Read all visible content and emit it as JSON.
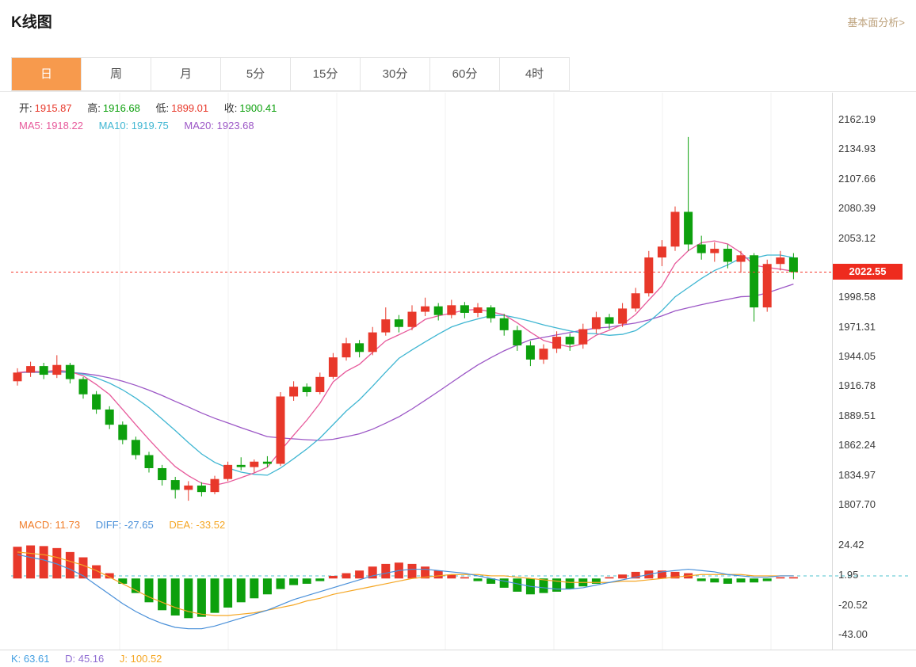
{
  "header": {
    "title": "K线图",
    "link": "基本面分析>"
  },
  "tabs": {
    "items": [
      {
        "label": "日",
        "active": true
      },
      {
        "label": "周",
        "active": false
      },
      {
        "label": "月",
        "active": false
      },
      {
        "label": "5分",
        "active": false
      },
      {
        "label": "15分",
        "active": false
      },
      {
        "label": "30分",
        "active": false
      },
      {
        "label": "60分",
        "active": false
      },
      {
        "label": "4时",
        "active": false
      }
    ]
  },
  "info": {
    "open_label": "开:",
    "open": "1915.87",
    "high_label": "高:",
    "high": "1916.68",
    "low_label": "低:",
    "low": "1899.01",
    "close_label": "收:",
    "close": "1900.41",
    "ma5_label": "MA5:",
    "ma5": "1918.22",
    "ma10_label": "MA10:",
    "ma10": "1919.75",
    "ma20_label": "MA20:",
    "ma20": "1923.68"
  },
  "macd_info": {
    "macd_label": "MACD:",
    "macd": "11.73",
    "diff_label": "DIFF:",
    "diff": "-27.65",
    "dea_label": "DEA:",
    "dea": "-33.52"
  },
  "kdj_info": {
    "k_label": "K:",
    "k": "63.61",
    "d_label": "D:",
    "d": "45.16",
    "j_label": "J:",
    "j": "100.52"
  },
  "price_badge": "2022.55",
  "colors": {
    "up": "#e8382a",
    "down": "#0da00d",
    "ma5": "#e75a9b",
    "ma10": "#3fb6d2",
    "ma20": "#9c57c6",
    "diff": "#4a90d9",
    "dea": "#f5a623",
    "badge": "#ee2b1e",
    "dashed_teal": "#4fc3cf",
    "current_price_line": "#f5382c",
    "tab_active": "#f79a4d"
  },
  "chart_data": {
    "type": "candlestick",
    "interval": "日",
    "price_axis_ticks": [
      2162.19,
      2134.93,
      2107.66,
      2080.39,
      2053.12,
      1998.58,
      1971.31,
      1944.05,
      1916.78,
      1889.51,
      1862.24,
      1834.97,
      1807.7
    ],
    "price_range": [
      1807.7,
      2162.19
    ],
    "current_price": 2022.55,
    "macd_axis_ticks": [
      24.42,
      1.95,
      -20.52,
      -43.0
    ],
    "macd_range": [
      -43.0,
      24.42
    ],
    "legend": {
      "ma5": 1918.22,
      "ma10": 1919.75,
      "ma20": 1923.68,
      "macd": 11.73,
      "diff": -27.65,
      "dea": -33.52,
      "k": 63.61,
      "d": 45.16,
      "j": 100.52
    },
    "candles": [
      [
        1922,
        1934,
        1918,
        1930
      ],
      [
        1930,
        1940,
        1926,
        1936
      ],
      [
        1936,
        1939,
        1924,
        1928
      ],
      [
        1928,
        1946,
        1925,
        1937
      ],
      [
        1937,
        1939,
        1920,
        1924
      ],
      [
        1924,
        1926,
        1906,
        1910
      ],
      [
        1910,
        1913,
        1892,
        1896
      ],
      [
        1896,
        1899,
        1878,
        1882
      ],
      [
        1882,
        1885,
        1864,
        1868
      ],
      [
        1868,
        1871,
        1850,
        1854
      ],
      [
        1854,
        1857,
        1838,
        1842
      ],
      [
        1842,
        1845,
        1826,
        1831
      ],
      [
        1831,
        1834,
        1814,
        1822
      ],
      [
        1822,
        1830,
        1812,
        1826
      ],
      [
        1826,
        1829,
        1816,
        1820
      ],
      [
        1820,
        1835,
        1818,
        1832
      ],
      [
        1832,
        1848,
        1830,
        1845
      ],
      [
        1845,
        1852,
        1840,
        1843
      ],
      [
        1843,
        1850,
        1838,
        1848
      ],
      [
        1848,
        1853,
        1843,
        1846
      ],
      [
        1846,
        1912,
        1844,
        1908
      ],
      [
        1908,
        1922,
        1904,
        1917
      ],
      [
        1917,
        1920,
        1908,
        1912
      ],
      [
        1912,
        1930,
        1910,
        1926
      ],
      [
        1926,
        1948,
        1924,
        1944
      ],
      [
        1944,
        1962,
        1941,
        1957
      ],
      [
        1957,
        1960,
        1944,
        1949
      ],
      [
        1949,
        1972,
        1946,
        1967
      ],
      [
        1967,
        1990,
        1964,
        1979
      ],
      [
        1979,
        1983,
        1967,
        1972
      ],
      [
        1972,
        1992,
        1969,
        1986
      ],
      [
        1986,
        1999,
        1982,
        1991
      ],
      [
        1991,
        1994,
        1978,
        1983
      ],
      [
        1983,
        1997,
        1980,
        1992
      ],
      [
        1992,
        1995,
        1980,
        1985
      ],
      [
        1985,
        1994,
        1981,
        1990
      ],
      [
        1990,
        1992,
        1976,
        1980
      ],
      [
        1980,
        1984,
        1964,
        1969
      ],
      [
        1969,
        1973,
        1950,
        1955
      ],
      [
        1955,
        1959,
        1936,
        1942
      ],
      [
        1942,
        1956,
        1938,
        1952
      ],
      [
        1952,
        1968,
        1948,
        1963
      ],
      [
        1963,
        1966,
        1950,
        1956
      ],
      [
        1956,
        1975,
        1952,
        1970
      ],
      [
        1970,
        1986,
        1966,
        1981
      ],
      [
        1981,
        1984,
        1970,
        1975
      ],
      [
        1975,
        1994,
        1972,
        1989
      ],
      [
        1989,
        2008,
        1986,
        2003
      ],
      [
        2003,
        2042,
        2000,
        2036
      ],
      [
        2036,
        2052,
        2028,
        2046
      ],
      [
        2046,
        2083,
        2042,
        2078
      ],
      [
        2078,
        2147,
        2042,
        2048
      ],
      [
        2048,
        2056,
        2034,
        2040
      ],
      [
        2040,
        2050,
        2032,
        2044
      ],
      [
        2044,
        2048,
        2026,
        2032
      ],
      [
        2032,
        2042,
        2022,
        2038
      ],
      [
        2038,
        2040,
        1977,
        1990
      ],
      [
        1990,
        2034,
        1986,
        2030
      ],
      [
        2030,
        2042,
        2024,
        2036
      ],
      [
        2036,
        2040,
        2016,
        2022.55
      ]
    ],
    "macd": {
      "hist": [
        24,
        25,
        24.5,
        23,
        20,
        16,
        10,
        4,
        -4,
        -11,
        -18,
        -24,
        -28,
        -30,
        -29,
        -26,
        -22,
        -18,
        -15,
        -12,
        -8,
        -5,
        -4,
        -2,
        2,
        4,
        6,
        9,
        11,
        12,
        11,
        9,
        6,
        3,
        1,
        -2,
        -4,
        -7,
        -10,
        -12,
        -11,
        -10,
        -8,
        -6,
        -4,
        1,
        3,
        5,
        6,
        6,
        5,
        4,
        -2,
        -3,
        -4,
        -3,
        -3,
        -2,
        1,
        1
      ],
      "diff": [
        18,
        16,
        14,
        11,
        7,
        2,
        -5,
        -12,
        -19,
        -25,
        -30,
        -34,
        -37,
        -38,
        -38,
        -36,
        -33,
        -30,
        -27,
        -24,
        -20,
        -16,
        -13,
        -10,
        -7,
        -4,
        -1,
        2,
        4,
        6,
        7,
        7,
        6,
        5,
        4,
        2,
        0,
        -2,
        -4,
        -6,
        -7,
        -8,
        -8,
        -7,
        -5,
        -3,
        -1,
        1,
        3,
        5,
        6,
        7,
        6,
        5,
        3,
        2,
        1,
        1,
        2,
        2
      ],
      "dea": [
        20,
        19,
        18,
        16,
        13,
        10,
        6,
        1,
        -4,
        -9,
        -14,
        -18,
        -22,
        -25,
        -27,
        -28,
        -28,
        -27,
        -26,
        -24,
        -22,
        -20,
        -17,
        -15,
        -12,
        -10,
        -8,
        -6,
        -4,
        -2,
        0,
        1,
        2,
        3,
        3,
        3,
        2,
        2,
        1,
        0,
        -1,
        -2,
        -3,
        -3,
        -3,
        -3,
        -2,
        -2,
        -1,
        0,
        1,
        2,
        3,
        3,
        3,
        3,
        2,
        2,
        2,
        2
      ]
    }
  }
}
